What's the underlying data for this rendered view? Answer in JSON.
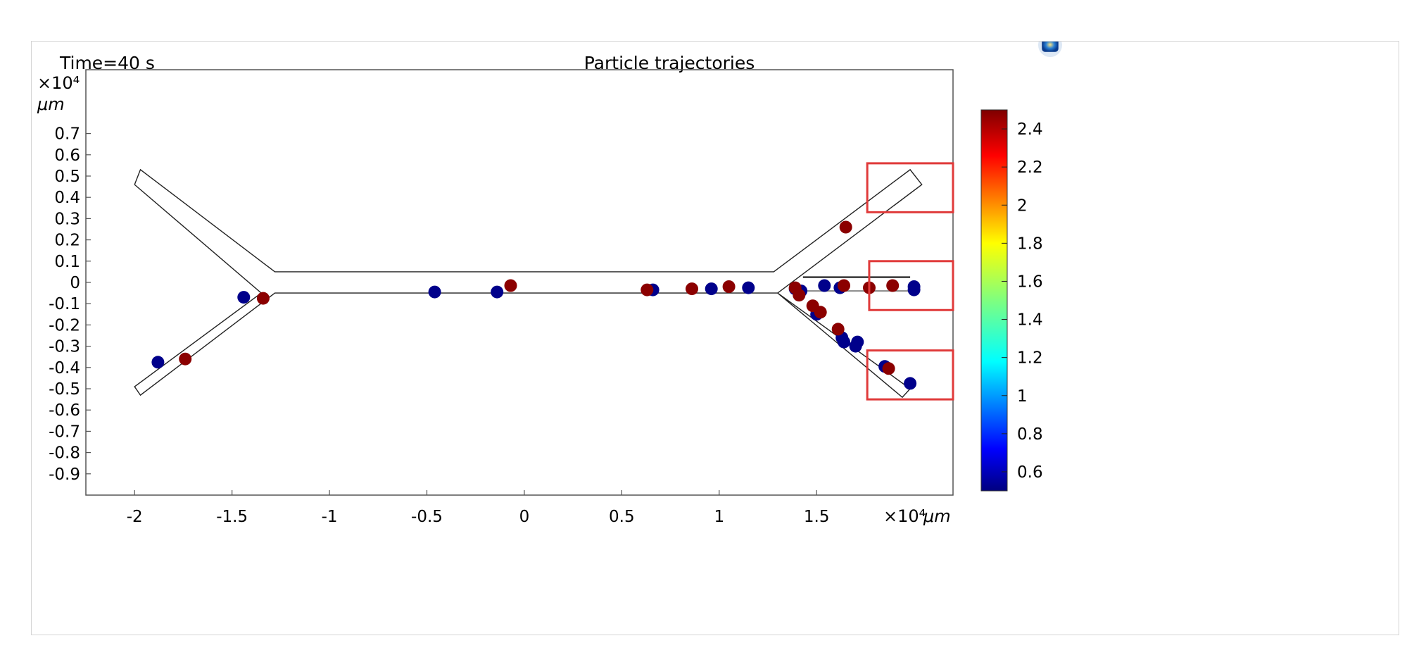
{
  "chart_data": {
    "type": "scatter",
    "time_label": "Time=40 s",
    "title": "Particle trajectories",
    "x_exponent": "×10⁴",
    "x_unit": "μm",
    "y_exponent": "×10⁴",
    "y_unit": "μm",
    "xlim": [
      -2.25,
      2.2
    ],
    "ylim": [
      -1.0,
      1.0
    ],
    "x_ticks": [
      -2,
      -1.5,
      -1,
      -0.5,
      0,
      0.5,
      1,
      1.5
    ],
    "x_tick_labels": [
      "-2",
      "-1.5",
      "-1",
      "-0.5",
      "0",
      "0.5",
      "1",
      "1.5"
    ],
    "y_ticks": [
      0.7,
      0.6,
      0.5,
      0.4,
      0.3,
      0.2,
      0.1,
      0,
      -0.1,
      -0.2,
      -0.3,
      -0.4,
      -0.5,
      -0.6,
      -0.7,
      -0.8,
      -0.9
    ],
    "y_tick_labels": [
      "0.7",
      "0.6",
      "0.5",
      "0.4",
      "0.3",
      "0.2",
      "0.1",
      "0",
      "-0.1",
      "-0.2",
      "-0.3",
      "-0.4",
      "-0.5",
      "-0.6",
      "-0.7",
      "-0.8",
      "-0.9"
    ],
    "grid": false,
    "colorbar": {
      "range": [
        0.5,
        2.5
      ],
      "ticks": [
        2.4,
        2.2,
        2,
        1.8,
        1.6,
        1.4,
        1.2,
        1,
        0.8,
        0.6
      ],
      "tick_labels": [
        "2.4",
        "2.2",
        "2",
        "1.8",
        "1.6",
        "1.4",
        "1.2",
        "1",
        "0.8",
        "0.6"
      ],
      "colormap": "jet"
    },
    "geometry": {
      "outline": [
        [
          -2.0,
          0.46
        ],
        [
          -1.97,
          0.53
        ],
        [
          -1.28,
          0.05
        ],
        [
          1.28,
          0.05
        ],
        [
          1.98,
          0.53
        ],
        [
          2.04,
          0.46
        ],
        [
          1.3,
          -0.05
        ],
        [
          1.98,
          -0.5
        ],
        [
          1.94,
          -0.54
        ],
        [
          1.3,
          -0.05
        ],
        [
          -1.28,
          -0.05
        ],
        [
          -1.97,
          -0.53
        ],
        [
          -2.0,
          -0.49
        ],
        [
          -1.35,
          -0.05
        ],
        [
          -2.0,
          0.46
        ]
      ],
      "inner_lines": [
        {
          "points": [
            [
              1.43,
              0.025
            ],
            [
              1.98,
              0.025
            ]
          ],
          "color": "#000000"
        },
        {
          "points": [
            [
              1.43,
              -0.04
            ],
            [
              1.97,
              -0.04
            ]
          ],
          "color": "#888888"
        }
      ]
    },
    "highlight_boxes": [
      {
        "x": [
          1.76,
          2.2
        ],
        "y": [
          0.33,
          0.56
        ]
      },
      {
        "x": [
          1.77,
          2.2
        ],
        "y": [
          -0.13,
          0.1
        ]
      },
      {
        "x": [
          1.76,
          2.2
        ],
        "y": [
          -0.55,
          -0.32
        ]
      }
    ],
    "series": [
      {
        "value": 0.55,
        "color": "#00008b",
        "points": [
          [
            -1.88,
            -0.375
          ],
          [
            -1.44,
            -0.07
          ],
          [
            -0.46,
            -0.045
          ],
          [
            -0.14,
            -0.045
          ],
          [
            0.66,
            -0.035
          ],
          [
            0.96,
            -0.03
          ],
          [
            1.15,
            -0.025
          ],
          [
            1.39,
            -0.03
          ],
          [
            1.42,
            -0.04
          ],
          [
            1.54,
            -0.015
          ],
          [
            1.62,
            -0.025
          ],
          [
            1.5,
            -0.15
          ],
          [
            1.63,
            -0.26
          ],
          [
            1.64,
            -0.28
          ],
          [
            1.7,
            -0.3
          ],
          [
            1.71,
            -0.28
          ],
          [
            1.85,
            -0.395
          ],
          [
            1.98,
            -0.475
          ],
          [
            2.0,
            -0.02
          ],
          [
            2.0,
            -0.035
          ]
        ]
      },
      {
        "value": 2.5,
        "color": "#8b0000",
        "points": [
          [
            -1.74,
            -0.36
          ],
          [
            -1.34,
            -0.075
          ],
          [
            -0.07,
            -0.015
          ],
          [
            0.63,
            -0.035
          ],
          [
            0.86,
            -0.03
          ],
          [
            1.05,
            -0.02
          ],
          [
            1.39,
            -0.025
          ],
          [
            1.41,
            -0.06
          ],
          [
            1.48,
            -0.11
          ],
          [
            1.52,
            -0.14
          ],
          [
            1.61,
            -0.22
          ],
          [
            1.64,
            -0.015
          ],
          [
            1.65,
            0.26
          ],
          [
            1.77,
            -0.025
          ],
          [
            1.89,
            -0.015
          ],
          [
            1.87,
            -0.405
          ]
        ]
      }
    ]
  },
  "window": {
    "badge_icon": "comsol-badge-icon"
  }
}
